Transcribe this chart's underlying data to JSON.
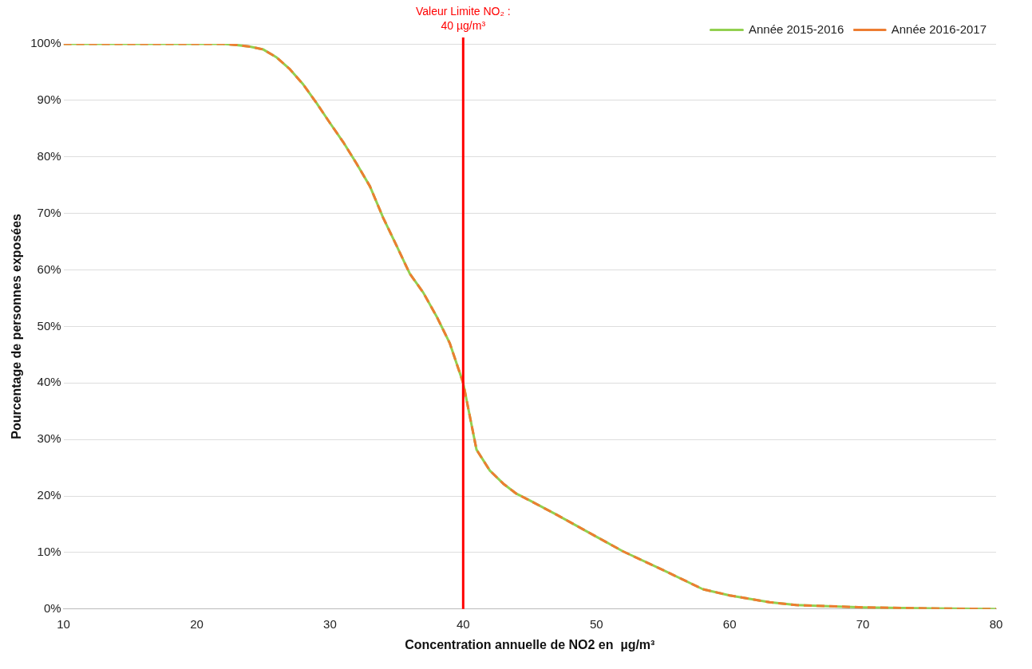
{
  "chart_data": {
    "type": "line",
    "xlabel": "Concentration annuelle de NO2 en  µg/m³",
    "ylabel": "Pourcentage de personnes exposées",
    "x": [
      10,
      12,
      14,
      16,
      18,
      20,
      22,
      23,
      24,
      25,
      26,
      27,
      28,
      29,
      30,
      31,
      32,
      33,
      34,
      35,
      36,
      37,
      38,
      39,
      40,
      41,
      42,
      43,
      44,
      45,
      47,
      50,
      52,
      55,
      58,
      60,
      63,
      65,
      70,
      75,
      80
    ],
    "series": [
      {
        "name": "Année 2015-2016",
        "color": "#92d050",
        "line_style": "solid",
        "values": [
          100,
          100,
          100,
          100,
          100,
          100,
          100,
          99.8,
          99.5,
          99,
          97.6,
          95.5,
          92.8,
          89.5,
          86,
          82.6,
          78.8,
          74.8,
          69.2,
          64.3,
          59.3,
          56,
          51.8,
          47,
          40,
          28.2,
          24.5,
          22.2,
          20.4,
          19.2,
          16.7,
          12.8,
          10.2,
          6.9,
          3.5,
          2.4,
          1.2,
          0.7,
          0.3,
          0.1,
          0
        ]
      },
      {
        "name": "Année 2016-2017",
        "color": "#ed7d31",
        "line_style": "dashed",
        "values": [
          100,
          100,
          100,
          100,
          100,
          100,
          100,
          99.8,
          99.5,
          99,
          97.6,
          95.5,
          92.8,
          89.5,
          86,
          82.6,
          78.8,
          74.8,
          69.2,
          64.3,
          59.3,
          56,
          51.8,
          47,
          40,
          28.2,
          24.5,
          22.2,
          20.4,
          19.2,
          16.7,
          12.8,
          10.2,
          6.9,
          3.5,
          2.4,
          1.2,
          0.7,
          0.3,
          0.1,
          0
        ]
      }
    ],
    "xlim": [
      10,
      80
    ],
    "xticks": [
      10,
      20,
      30,
      40,
      50,
      60,
      70,
      80
    ],
    "ylim": [
      0,
      100
    ],
    "yticks": [
      {
        "value": 0,
        "label": "0%"
      },
      {
        "value": 10,
        "label": "10%"
      },
      {
        "value": 20,
        "label": "20%"
      },
      {
        "value": 30,
        "label": "30%"
      },
      {
        "value": 40,
        "label": "40%"
      },
      {
        "value": 50,
        "label": "50%"
      },
      {
        "value": 60,
        "label": "60%"
      },
      {
        "value": 70,
        "label": "70%"
      },
      {
        "value": 80,
        "label": "80%"
      },
      {
        "value": 90,
        "label": "90%"
      },
      {
        "value": 100,
        "label": "100%"
      }
    ],
    "ref_lines": [
      {
        "axis": "x",
        "value": 40,
        "label": "Valeur Limite NO₂ : 40 µg/m³",
        "color": "#ff0000"
      }
    ],
    "grid": "y",
    "legend": "top right",
    "marker": "none"
  }
}
